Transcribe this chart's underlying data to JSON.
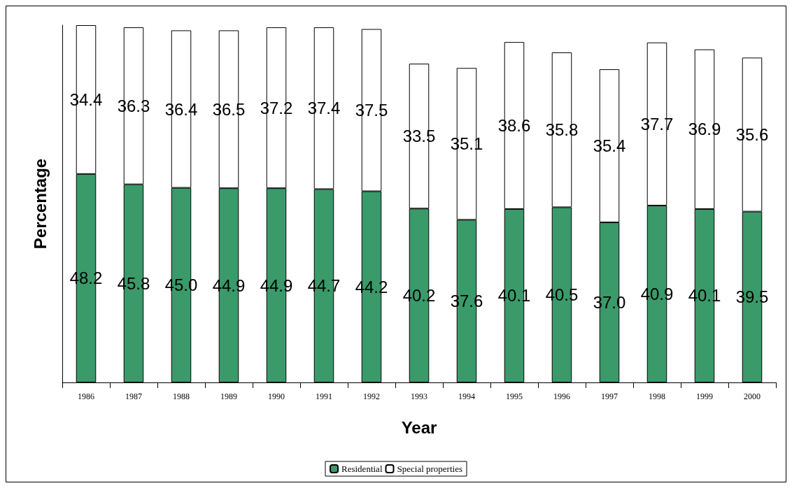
{
  "chart_data": {
    "type": "bar",
    "stacked": true,
    "xlabel": "Year",
    "ylabel": "Percentage",
    "legend": "bottom",
    "grid": false,
    "categories": [
      "1986",
      "1987",
      "1988",
      "1989",
      "1990",
      "1991",
      "1992",
      "1993",
      "1994",
      "1995",
      "1996",
      "1997",
      "1998",
      "1999",
      "2000"
    ],
    "series": [
      {
        "name": "Residential",
        "color": "#3a9a6a",
        "values": [
          48.2,
          45.8,
          45.0,
          44.9,
          44.9,
          44.7,
          44.2,
          40.2,
          37.6,
          40.1,
          40.5,
          37.0,
          40.9,
          40.1,
          39.5
        ],
        "value_labels": [
          "48.2",
          "45.8",
          "45.0",
          "44.9",
          "44.9",
          "44.7",
          "44.2",
          "40.2",
          "37.6",
          "40.1",
          "40.5",
          "37.0",
          "40.9",
          "40.1",
          "39.5"
        ]
      },
      {
        "name": "Special properties",
        "color": "#ffffff",
        "values": [
          34.4,
          36.3,
          36.4,
          36.5,
          37.2,
          37.4,
          37.5,
          33.5,
          35.1,
          38.6,
          35.8,
          35.4,
          37.7,
          36.9,
          35.6
        ],
        "value_labels": [
          "34.4",
          "36.3",
          "36.4",
          "36.5",
          "37.2",
          "37.4",
          "37.5",
          "33.5",
          "35.1",
          "38.6",
          "35.8",
          "35.4",
          "37.7",
          "36.9",
          "35.6"
        ]
      }
    ]
  }
}
